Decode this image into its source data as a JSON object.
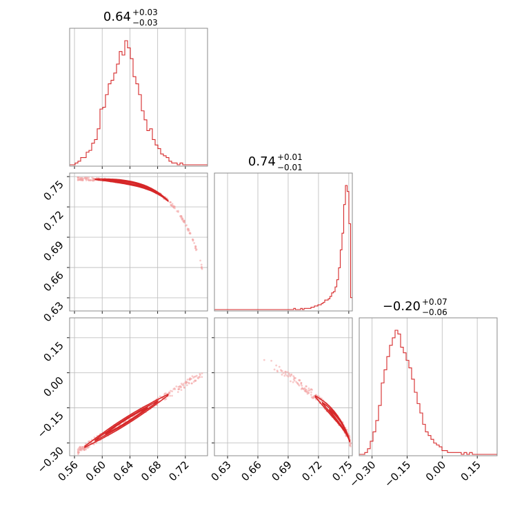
{
  "chart_data": {
    "type": "corner",
    "colors": {
      "line": "#d62728",
      "grid": "#c0c0c0",
      "frame": "#888888",
      "scatter": "#f2a0a0"
    },
    "grid": true,
    "params": [
      {
        "median": "0.64",
        "plus": "+0.03",
        "minus": "−0.03",
        "range": [
          0.553,
          0.752
        ],
        "ticks": [
          0.56,
          0.6,
          0.64,
          0.68,
          0.72
        ],
        "tick_labels": [
          "0.56",
          "0.60",
          "0.64",
          "0.68",
          "0.72"
        ]
      },
      {
        "median": "0.74",
        "plus": "+0.01",
        "minus": "−0.01",
        "range": [
          0.617,
          0.7535
        ],
        "ticks": [
          0.63,
          0.66,
          0.69,
          0.72,
          0.75
        ],
        "tick_labels": [
          "0.63",
          "0.66",
          "0.69",
          "0.72",
          "0.75"
        ]
      },
      {
        "median": "−0.20",
        "plus": "+0.07",
        "minus": "−0.06",
        "range": [
          -0.355,
          0.235
        ],
        "ticks": [
          -0.3,
          -0.15,
          0.0,
          0.15
        ],
        "tick_labels": [
          "−0.30",
          "−0.15",
          "0.00",
          "0.15"
        ]
      }
    ],
    "histograms": [
      {
        "param": 0,
        "counts": [
          0,
          0,
          1,
          2,
          4,
          4,
          7,
          8,
          12,
          14,
          20,
          31,
          32,
          39,
          45,
          47,
          51,
          56,
          63,
          61,
          69,
          65,
          59,
          49,
          45,
          39,
          30,
          25,
          19,
          20,
          14,
          11,
          9,
          6,
          5,
          4,
          2,
          1,
          1,
          0,
          1,
          0,
          0,
          0,
          0,
          0,
          0,
          0,
          0,
          0
        ]
      },
      {
        "param": 1,
        "counts": [
          0,
          0,
          0,
          0,
          0,
          0,
          0,
          0,
          0,
          0,
          0,
          0,
          0,
          0,
          0,
          0,
          0,
          0,
          0,
          0,
          0,
          0,
          0,
          0,
          0,
          0,
          0,
          0,
          0,
          0,
          0,
          0,
          0,
          0,
          0,
          0,
          0,
          0,
          0,
          0,
          0,
          0,
          0,
          0,
          0,
          0,
          1,
          0,
          0,
          0,
          1,
          0,
          1,
          1,
          1,
          1,
          2,
          2,
          3,
          3,
          4,
          4,
          5,
          6,
          8,
          8,
          9,
          11,
          14,
          15,
          19,
          25,
          35,
          50,
          64,
          88,
          104,
          99,
          72,
          10
        ]
      },
      {
        "param": 2,
        "counts": [
          0,
          0,
          1,
          3,
          7,
          12,
          18,
          26,
          38,
          45,
          52,
          58,
          62,
          66,
          64,
          57,
          54,
          50,
          46,
          40,
          33,
          27,
          22,
          16,
          12,
          10,
          8,
          6,
          5,
          4,
          2,
          2,
          1,
          1,
          1,
          1,
          1,
          0,
          1,
          0,
          1,
          0,
          0,
          0,
          0,
          0,
          0,
          0,
          0,
          0
        ]
      }
    ]
  }
}
